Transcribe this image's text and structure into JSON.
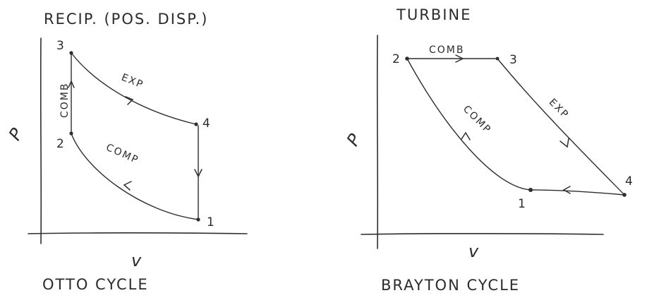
{
  "otto": {
    "header": "RECIP. (POS. DISP.)",
    "ylabel": "P",
    "xlabel": "v",
    "caption": "OTTO CYCLE",
    "points": [
      "3",
      "4",
      "2",
      "1"
    ],
    "processes": {
      "expansion": "EXP",
      "compression": "COMP",
      "combustion": "COMB"
    }
  },
  "brayton": {
    "header": "TURBINE",
    "ylabel": "P",
    "xlabel": "v",
    "caption": "BRAYTON CYCLE",
    "points": [
      "2",
      "3",
      "4",
      "1"
    ],
    "processes": {
      "combustion": "COMB",
      "expansion": "EXP",
      "compression": "COMP"
    }
  }
}
